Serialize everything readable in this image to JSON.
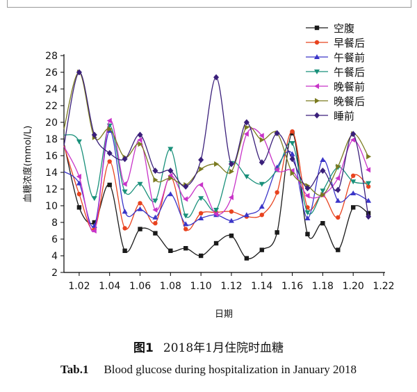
{
  "chart_data": {
    "type": "line",
    "xlabel": "日期",
    "ylabel": "血糖浓度(mmol/L)",
    "xlim": [
      1.01,
      1.22
    ],
    "ylim": [
      2,
      28
    ],
    "x_ticks": [
      "1.02",
      "1.04",
      "1.06",
      "1.08",
      "1.10",
      "1.12",
      "1.14",
      "1.16",
      "1.18",
      "1.20",
      "1.22"
    ],
    "y_ticks": [
      "2",
      "4",
      "6",
      "8",
      "10",
      "12",
      "14",
      "16",
      "18",
      "20",
      "22",
      "24",
      "26",
      "28"
    ],
    "legend_position": "top-right",
    "x": [
      1.01,
      1.02,
      1.03,
      1.04,
      1.05,
      1.06,
      1.07,
      1.08,
      1.09,
      1.1,
      1.11,
      1.12,
      1.13,
      1.14,
      1.15,
      1.16,
      1.17,
      1.18,
      1.19,
      1.2,
      1.21
    ],
    "series": [
      {
        "name": "空腹",
        "color": "#1a1a1a",
        "marker": "square",
        "values": [
          17.5,
          9.8,
          8.0,
          12.5,
          4.6,
          7.2,
          6.7,
          4.6,
          4.9,
          4.0,
          5.5,
          6.4,
          3.7,
          4.7,
          6.8,
          18.7,
          6.6,
          7.9,
          4.7,
          9.8,
          9.1
        ]
      },
      {
        "name": "早餐后",
        "color": "#e8431f",
        "marker": "circle",
        "values": [
          17.2,
          11.4,
          7.2,
          15.3,
          7.3,
          10.3,
          7.9,
          13.5,
          7.2,
          9.1,
          9.2,
          9.3,
          8.7,
          8.9,
          11.6,
          18.9,
          9.8,
          11.3,
          8.6,
          13.6,
          12.3
        ]
      },
      {
        "name": "午餐前",
        "color": "#3a35c8",
        "marker": "triangle-up",
        "values": [
          14.1,
          12.7,
          7.6,
          19.0,
          9.3,
          9.6,
          8.6,
          11.4,
          7.8,
          8.5,
          8.9,
          8.2,
          8.9,
          9.9,
          14.6,
          16.2,
          8.5,
          15.5,
          10.6,
          11.5,
          10.6
        ]
      },
      {
        "name": "午餐后",
        "color": "#19907a",
        "marker": "triangle-down",
        "values": [
          18.5,
          17.7,
          10.9,
          19.6,
          11.7,
          12.6,
          10.6,
          16.8,
          8.8,
          10.9,
          9.5,
          15.1,
          13.5,
          12.6,
          14.3,
          17.5,
          9.2,
          11.8,
          14.6,
          12.9,
          12.7
        ]
      },
      {
        "name": "晚餐前",
        "color": "#c833c8",
        "marker": "triangle-left",
        "values": [
          17.1,
          13.5,
          7.0,
          20.2,
          12.6,
          17.9,
          9.5,
          13.6,
          10.8,
          12.5,
          9.0,
          11.0,
          18.6,
          18.4,
          14.3,
          14.2,
          11.2,
          11.3,
          13.3,
          17.9,
          14.3
        ]
      },
      {
        "name": "晚餐后",
        "color": "#7a7a1f",
        "marker": "triangle-right",
        "values": [
          19.2,
          26.0,
          18.2,
          19.2,
          15.8,
          17.4,
          13.1,
          13.3,
          12.5,
          14.4,
          15.0,
          14.1,
          19.4,
          17.9,
          18.7,
          13.9,
          12.4,
          11.3,
          14.7,
          18.6,
          15.9
        ]
      },
      {
        "name": "睡前",
        "color": "#3a1f7a",
        "marker": "diamond",
        "values": [
          17.2,
          26.0,
          18.5,
          16.3,
          15.6,
          18.5,
          14.2,
          14.2,
          12.3,
          15.5,
          25.4,
          15.0,
          20.0,
          15.2,
          18.7,
          15.6,
          12.1,
          14.2,
          11.9,
          18.6,
          8.7
        ]
      }
    ]
  },
  "caption": {
    "cn_label": "图1",
    "cn_text": "2018年1月住院时血糖",
    "en_label": "Tab.1",
    "en_text": "Blood glucose during hospitalization in January 2018"
  }
}
